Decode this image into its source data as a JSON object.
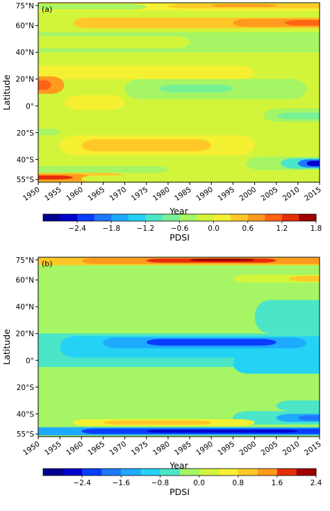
{
  "figure": {
    "background": "#ffffff"
  },
  "chart_data": [
    {
      "type": "heatmap",
      "panel_label": "(a)",
      "title": "",
      "xlabel": "Year",
      "ylabel": "Latitude",
      "x_ticks": [
        1950,
        1955,
        1960,
        1965,
        1970,
        1975,
        1980,
        1985,
        1990,
        1995,
        2000,
        2005,
        2010,
        2015
      ],
      "xlim": [
        1950,
        2015
      ],
      "y_ticks": [
        {
          "value": 75,
          "label": "75°N"
        },
        {
          "value": 60,
          "label": "60°N"
        },
        {
          "value": 40,
          "label": "40°N"
        },
        {
          "value": 20,
          "label": "20°N"
        },
        {
          "value": 0,
          "label": "0°"
        },
        {
          "value": -20,
          "label": "20°S"
        },
        {
          "value": -40,
          "label": "40°S"
        },
        {
          "value": -55,
          "label": "55°S"
        }
      ],
      "ylim": [
        -57,
        77
      ],
      "colorbar": {
        "label": "PDSI",
        "range": [
          -3.0,
          1.8
        ],
        "ticks": [
          -2.4,
          -1.8,
          -1.2,
          -0.6,
          0.0,
          0.6,
          1.2,
          1.8
        ],
        "tick_labels": [
          "−2.4",
          "−1.8",
          "−1.2",
          "−0.6",
          "0.0",
          "0.6",
          "1.2",
          "1.8"
        ],
        "levels": [
          -3.0,
          -2.7,
          -2.4,
          -2.1,
          -1.8,
          -1.5,
          -1.2,
          -0.9,
          -0.6,
          -0.3,
          0.0,
          0.3,
          0.6,
          0.9,
          1.2,
          1.5,
          1.8
        ],
        "colors": [
          "#00008f",
          "#0000cd",
          "#0a3cff",
          "#1e78ff",
          "#1eaaff",
          "#23d2f5",
          "#4be6c8",
          "#78f096",
          "#a5f564",
          "#d2f53c",
          "#f5f032",
          "#ffc828",
          "#ff9a1e",
          "#ff6414",
          "#e62d0a",
          "#a00000"
        ]
      },
      "background_value": -0.1,
      "features": [
        {
          "x": [
            1950,
            2015
          ],
          "y": [
            71,
            77
          ],
          "value": 0.2
        },
        {
          "x": [
            1980,
            2015
          ],
          "y": [
            73,
            76
          ],
          "value": 0.55
        },
        {
          "x": [
            1990,
            2005
          ],
          "y": [
            74,
            76
          ],
          "value": 0.8
        },
        {
          "x": [
            1950,
            1975
          ],
          "y": [
            72,
            76
          ],
          "value": -0.5
        },
        {
          "x": [
            1958,
            2015
          ],
          "y": [
            58,
            66
          ],
          "value": 0.3
        },
        {
          "x": [
            1995,
            2015
          ],
          "y": [
            59,
            65
          ],
          "value": 0.6
        },
        {
          "x": [
            2007,
            2015
          ],
          "y": [
            60,
            64
          ],
          "value": 0.9
        },
        {
          "x": [
            1950,
            2015
          ],
          "y": [
            40,
            55
          ],
          "value": -0.35
        },
        {
          "x": [
            1950,
            1985
          ],
          "y": [
            43,
            52
          ],
          "value": -0.15
        },
        {
          "x": [
            1950,
            2000
          ],
          "y": [
            20,
            30
          ],
          "value": 0.25
        },
        {
          "x": [
            1950,
            1956
          ],
          "y": [
            9,
            22
          ],
          "value": 0.65
        },
        {
          "x": [
            1950,
            1953
          ],
          "y": [
            12,
            19
          ],
          "value": 0.95
        },
        {
          "x": [
            1970,
            2012
          ],
          "y": [
            5,
            20
          ],
          "value": -0.45
        },
        {
          "x": [
            1978,
            1995
          ],
          "y": [
            10,
            16
          ],
          "value": -0.75
        },
        {
          "x": [
            1956,
            1970
          ],
          "y": [
            -3,
            8
          ],
          "value": 0.25
        },
        {
          "x": [
            2002,
            2015
          ],
          "y": [
            -12,
            -2
          ],
          "value": -0.45
        },
        {
          "x": [
            2005,
            2015
          ],
          "y": [
            -10,
            -5
          ],
          "value": -0.7
        },
        {
          "x": [
            1950,
            1955
          ],
          "y": [
            -22,
            -17
          ],
          "value": -0.6
        },
        {
          "x": [
            1955,
            2000
          ],
          "y": [
            -37,
            -22
          ],
          "value": 0.2
        },
        {
          "x": [
            1960,
            1990
          ],
          "y": [
            -34,
            -25
          ],
          "value": 0.35
        },
        {
          "x": [
            1998,
            2015
          ],
          "y": [
            -48,
            -38
          ],
          "value": -0.55
        },
        {
          "x": [
            2006,
            2015
          ],
          "y": [
            -47,
            -39
          ],
          "value": -1.0
        },
        {
          "x": [
            2010,
            2015
          ],
          "y": [
            -46,
            -40
          ],
          "value": -1.9
        },
        {
          "x": [
            2012,
            2015
          ],
          "y": [
            -45,
            -41
          ],
          "value": -2.6
        },
        {
          "x": [
            1950,
            1980
          ],
          "y": [
            -50,
            -45
          ],
          "value": -0.5
        },
        {
          "x": [
            1950,
            1970
          ],
          "y": [
            -57,
            -50
          ],
          "value": 0.3
        },
        {
          "x": [
            1950,
            1962
          ],
          "y": [
            -56,
            -51
          ],
          "value": 0.8
        },
        {
          "x": [
            1950,
            1958
          ],
          "y": [
            -55,
            -52
          ],
          "value": 1.25
        },
        {
          "x": [
            1960,
            2015
          ],
          "y": [
            -57,
            -52
          ],
          "value": -0.3
        }
      ]
    },
    {
      "type": "heatmap",
      "panel_label": "(b)",
      "title": "",
      "xlabel": "Year",
      "ylabel": "Latitude",
      "x_ticks": [
        1950,
        1955,
        1960,
        1965,
        1970,
        1975,
        1980,
        1985,
        1990,
        1995,
        2000,
        2005,
        2010,
        2015
      ],
      "xlim": [
        1950,
        2015
      ],
      "y_ticks": [
        {
          "value": 75,
          "label": "75°N"
        },
        {
          "value": 60,
          "label": "60°N"
        },
        {
          "value": 40,
          "label": "40°N"
        },
        {
          "value": 20,
          "label": "20°N"
        },
        {
          "value": 0,
          "label": "0°"
        },
        {
          "value": -20,
          "label": "20°S"
        },
        {
          "value": -40,
          "label": "40°S"
        },
        {
          "value": -55,
          "label": "55°S"
        }
      ],
      "ylim": [
        -57,
        77
      ],
      "colorbar": {
        "label": "PDSI",
        "range": [
          -3.2,
          2.4
        ],
        "ticks": [
          -2.4,
          -1.6,
          -0.8,
          0.0,
          0.8,
          1.6,
          2.4
        ],
        "tick_labels": [
          "−2.4",
          "−1.6",
          "−0.8",
          "0.0",
          "0.8",
          "1.6",
          "2.4"
        ],
        "levels": [
          -3.2,
          -2.8,
          -2.4,
          -2.0,
          -1.6,
          -1.2,
          -0.8,
          -0.4,
          0.0,
          0.4,
          0.8,
          1.2,
          1.6,
          2.0,
          2.4
        ],
        "colors": [
          "#00008f",
          "#0000cd",
          "#0a3cff",
          "#1e78ff",
          "#1eaaff",
          "#23d2f5",
          "#4be6c8",
          "#a5f564",
          "#d2f53c",
          "#f5f032",
          "#ffc828",
          "#ff9a1e",
          "#e62d0a",
          "#a00000"
        ]
      },
      "background_value": -0.2,
      "features": [
        {
          "x": [
            1950,
            2015
          ],
          "y": [
            71,
            77
          ],
          "value": 1.0
        },
        {
          "x": [
            1960,
            2015
          ],
          "y": [
            72,
            76.5
          ],
          "value": 1.4
        },
        {
          "x": [
            1975,
            2005
          ],
          "y": [
            73,
            76
          ],
          "value": 1.8
        },
        {
          "x": [
            1985,
            2000
          ],
          "y": [
            74,
            76
          ],
          "value": 2.1
        },
        {
          "x": [
            1995,
            2015
          ],
          "y": [
            58,
            64
          ],
          "value": 0.3
        },
        {
          "x": [
            2008,
            2015
          ],
          "y": [
            59,
            63
          ],
          "value": 0.9
        },
        {
          "x": [
            2000,
            2015
          ],
          "y": [
            20,
            45
          ],
          "value": -0.45
        },
        {
          "x": [
            1950,
            2015
          ],
          "y": [
            -5,
            20
          ],
          "value": -0.55
        },
        {
          "x": [
            1955,
            2015
          ],
          "y": [
            2,
            18
          ],
          "value": -0.95
        },
        {
          "x": [
            1965,
            2012
          ],
          "y": [
            9,
            17
          ],
          "value": -1.5
        },
        {
          "x": [
            1975,
            2005
          ],
          "y": [
            11,
            16
          ],
          "value": -2.1
        },
        {
          "x": [
            1995,
            2015
          ],
          "y": [
            -10,
            5
          ],
          "value": -1.0
        },
        {
          "x": [
            2005,
            2015
          ],
          "y": [
            -38,
            -30
          ],
          "value": -0.45
        },
        {
          "x": [
            1995,
            2015
          ],
          "y": [
            -48,
            -38
          ],
          "value": -0.7
        },
        {
          "x": [
            2005,
            2015
          ],
          "y": [
            -46,
            -40
          ],
          "value": -1.4
        },
        {
          "x": [
            2010,
            2015
          ],
          "y": [
            -45,
            -41
          ],
          "value": -2.0
        },
        {
          "x": [
            1958,
            2000
          ],
          "y": [
            -49,
            -44
          ],
          "value": 0.6
        },
        {
          "x": [
            1965,
            1990
          ],
          "y": [
            -48,
            -45
          ],
          "value": 1.0
        },
        {
          "x": [
            1950,
            2015
          ],
          "y": [
            -56,
            -50
          ],
          "value": -1.4
        },
        {
          "x": [
            1960,
            2015
          ],
          "y": [
            -55,
            -51
          ],
          "value": -2.1
        },
        {
          "x": [
            1975,
            2010
          ],
          "y": [
            -54,
            -52
          ],
          "value": -2.8
        }
      ]
    }
  ]
}
